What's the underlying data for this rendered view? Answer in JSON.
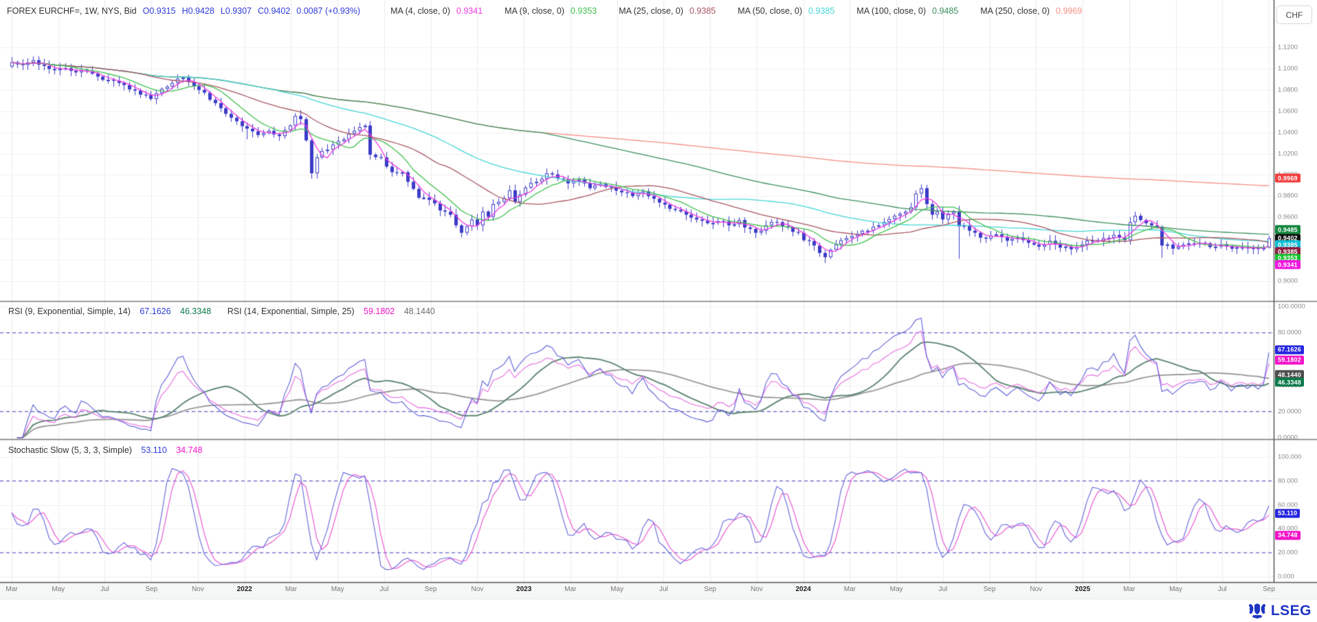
{
  "header": {
    "title": "FOREX EURCHF=, 1W, NYS, Bid",
    "open": "O0.9315",
    "high": "H0.9428",
    "low": "L0.9307",
    "close": "C0.9402",
    "change": "0.0087 (+0.93%)",
    "mas": [
      {
        "label": "MA (4, close, 0)",
        "value": "0.9341"
      },
      {
        "label": "MA (9, close, 0)",
        "value": "0.9353"
      },
      {
        "label": "MA (25, close, 0)",
        "value": "0.9385"
      },
      {
        "label": "MA (50, close, 0)",
        "value": "0.9385"
      },
      {
        "label": "MA (100, close, 0)",
        "value": "0.9485"
      },
      {
        "label": "MA (250, close, 0)",
        "value": "0.9969"
      }
    ]
  },
  "currency_button": "CHF",
  "logo": {
    "text": "LSEG"
  },
  "price_axis": {
    "ticks": [
      "1.1200",
      "1.1000",
      "1.0800",
      "1.0600",
      "1.0400",
      "1.0200",
      "1.0000",
      "0.9800",
      "0.9600",
      "0.9400",
      "0.9200",
      "0.9000"
    ],
    "badges": [
      {
        "text": "0.9969",
        "bg": "#f24040"
      },
      {
        "text": "0.9485",
        "bg": "#15873f"
      },
      {
        "text": "0.9402",
        "bg": "#111111"
      },
      {
        "text": "0.9385",
        "bg": "#10bfd4"
      },
      {
        "text": "0.9385",
        "bg": "#8e1f41"
      },
      {
        "text": "0.9353",
        "bg": "#12c12b"
      },
      {
        "text": "0.9341",
        "bg": "#ef16e0"
      }
    ]
  },
  "rsi_panel": {
    "label1": "RSI (9, Exponential, Simple, 14)",
    "value1": "67.1626",
    "value2": "46.3348",
    "label2": "RSI (14, Exponential, Simple, 25)",
    "value3": "59.1802",
    "value4": "48.1440",
    "colors": {
      "v1": "#2d3bd8",
      "v2": "#0a7a49",
      "v3": "#f213c9",
      "v4": "#6e6e6e"
    },
    "ticks": [
      "100.0000",
      "80.0000",
      "60.0000",
      "40.0000",
      "20.0000",
      "0.0000"
    ],
    "badges": [
      {
        "text": "67.1626",
        "bg": "#2626e0"
      },
      {
        "text": "59.1802",
        "bg": "#f213c9"
      },
      {
        "text": "48.1440",
        "bg": "#4d4d4d"
      },
      {
        "text": "46.3348",
        "bg": "#0a7a49"
      }
    ]
  },
  "stoch_panel": {
    "label": "Stochastic Slow (5, 3, 3, Simple)",
    "value1": "53.110",
    "value2": "34.748",
    "colors": {
      "v1": "#2d3bd8",
      "v2": "#f213c9"
    },
    "ticks": [
      "100.000",
      "80.000",
      "60.000",
      "40.000",
      "20.000",
      "0.000"
    ],
    "badges": [
      {
        "text": "53.110",
        "bg": "#2626e0"
      },
      {
        "text": "34.748",
        "bg": "#f213c9"
      }
    ]
  },
  "time_axis": {
    "labels": [
      "Mar",
      "May",
      "Jul",
      "Sep",
      "Nov",
      "2022",
      "Mar",
      "May",
      "Jul",
      "Sep",
      "Nov",
      "2023",
      "Mar",
      "May",
      "Jul",
      "Sep",
      "Nov",
      "2024",
      "Mar",
      "May",
      "Jul",
      "Sep",
      "Nov",
      "2025",
      "Mar",
      "May",
      "Jul",
      "Sep"
    ],
    "year_labels": [
      "2022",
      "2023",
      "2024",
      "2025"
    ]
  },
  "chart_data": {
    "type": "candlestick",
    "symbol": "EURCHF=",
    "interval": "1W",
    "x_start": "Mar 2021",
    "x_end": "Sep 2025",
    "weeks": 236,
    "price_range": [
      0.9,
      1.12
    ],
    "grid_step": 0.02,
    "candle_color": "#3b3bc8",
    "last_candle": {
      "open": 0.9315,
      "high": 0.9428,
      "low": 0.9307,
      "close": 0.9402
    },
    "close_anchors": [
      [
        0,
        1.106
      ],
      [
        2,
        1.1035
      ],
      [
        4,
        1.108
      ],
      [
        6,
        1.1025
      ],
      [
        8,
        1.0985
      ],
      [
        10,
        1.1005
      ],
      [
        12,
        1.0965
      ],
      [
        14,
        1.0975
      ],
      [
        16,
        1.0925
      ],
      [
        18,
        1.0895
      ],
      [
        20,
        1.0865
      ],
      [
        22,
        1.0805
      ],
      [
        24,
        1.0755
      ],
      [
        26,
        1.0715
      ],
      [
        28,
        1.081
      ],
      [
        30,
        1.0865
      ],
      [
        32,
        1.0915
      ],
      [
        33,
        1.0875
      ],
      [
        34,
        1.0835
      ],
      [
        36,
        1.0775
      ],
      [
        38,
        1.0675
      ],
      [
        40,
        1.0575
      ],
      [
        42,
        1.0505
      ],
      [
        44,
        1.0435
      ],
      [
        46,
        1.0375
      ],
      [
        48,
        1.0415
      ],
      [
        50,
        1.0365
      ],
      [
        52,
        1.0465
      ],
      [
        53,
        1.0555
      ],
      [
        54,
        1.0525
      ],
      [
        55,
        1.0325
      ],
      [
        56,
        1.0015
      ],
      [
        57,
        1.0165
      ],
      [
        58,
        1.0225
      ],
      [
        60,
        1.0285
      ],
      [
        62,
        1.0335
      ],
      [
        64,
        1.0415
      ],
      [
        66,
        1.0465
      ],
      [
        67,
        1.019
      ],
      [
        69,
        1.0165
      ],
      [
        71,
        1.0025
      ],
      [
        73,
        1.0025
      ],
      [
        74,
        0.9935
      ],
      [
        76,
        0.9785
      ],
      [
        78,
        0.9765
      ],
      [
        80,
        0.9665
      ],
      [
        82,
        0.9625
      ],
      [
        83,
        0.9525
      ],
      [
        84,
        0.9455
      ],
      [
        85,
        0.9515
      ],
      [
        86,
        0.958
      ],
      [
        87,
        0.9525
      ],
      [
        88,
        0.9655
      ],
      [
        89,
        0.9605
      ],
      [
        90,
        0.9725
      ],
      [
        92,
        0.978
      ],
      [
        93,
        0.9855
      ],
      [
        94,
        0.9745
      ],
      [
        95,
        0.9815
      ],
      [
        96,
        0.988
      ],
      [
        98,
        0.9935
      ],
      [
        100,
        1.0015
      ],
      [
        102,
        0.9965
      ],
      [
        104,
        0.992
      ],
      [
        106,
        0.9955
      ],
      [
        108,
        0.9875
      ],
      [
        110,
        0.9915
      ],
      [
        112,
        0.9885
      ],
      [
        114,
        0.9835
      ],
      [
        116,
        0.98
      ],
      [
        118,
        0.9845
      ],
      [
        120,
        0.9775
      ],
      [
        122,
        0.972
      ],
      [
        124,
        0.967
      ],
      [
        126,
        0.9625
      ],
      [
        128,
        0.958
      ],
      [
        130,
        0.9545
      ],
      [
        132,
        0.9565
      ],
      [
        134,
        0.9525
      ],
      [
        136,
        0.9575
      ],
      [
        137,
        0.9505
      ],
      [
        139,
        0.9455
      ],
      [
        141,
        0.9525
      ],
      [
        143,
        0.9555
      ],
      [
        145,
        0.9505
      ],
      [
        147,
        0.9455
      ],
      [
        148,
        0.9385
      ],
      [
        150,
        0.9335
      ],
      [
        151,
        0.9265
      ],
      [
        152,
        0.9225
      ],
      [
        153,
        0.9295
      ],
      [
        154,
        0.9345
      ],
      [
        156,
        0.9405
      ],
      [
        158,
        0.9445
      ],
      [
        160,
        0.9475
      ],
      [
        162,
        0.9525
      ],
      [
        164,
        0.9585
      ],
      [
        166,
        0.9635
      ],
      [
        168,
        0.9695
      ],
      [
        169,
        0.9825
      ],
      [
        170,
        0.9875
      ],
      [
        171,
        0.9725
      ],
      [
        172,
        0.9625
      ],
      [
        173,
        0.9655
      ],
      [
        174,
        0.958
      ],
      [
        175,
        0.9635
      ],
      [
        176,
        0.9655
      ],
      [
        177,
        0.9515
      ],
      [
        178,
        0.9525
      ],
      [
        179,
        0.9475
      ],
      [
        180,
        0.9455
      ],
      [
        182,
        0.94
      ],
      [
        184,
        0.944
      ],
      [
        186,
        0.938
      ],
      [
        188,
        0.941
      ],
      [
        190,
        0.936
      ],
      [
        192,
        0.9325
      ],
      [
        194,
        0.938
      ],
      [
        196,
        0.9315
      ],
      [
        198,
        0.93
      ],
      [
        200,
        0.9345
      ],
      [
        202,
        0.9385
      ],
      [
        204,
        0.9405
      ],
      [
        206,
        0.9435
      ],
      [
        208,
        0.9385
      ],
      [
        209,
        0.9555
      ],
      [
        210,
        0.9615
      ],
      [
        211,
        0.9575
      ],
      [
        212,
        0.9545
      ],
      [
        213,
        0.9525
      ],
      [
        214,
        0.951
      ],
      [
        215,
        0.9335
      ],
      [
        216,
        0.9345
      ],
      [
        217,
        0.9305
      ],
      [
        218,
        0.9325
      ],
      [
        220,
        0.9355
      ],
      [
        222,
        0.936
      ],
      [
        224,
        0.932
      ],
      [
        226,
        0.9345
      ],
      [
        228,
        0.9305
      ],
      [
        230,
        0.932
      ],
      [
        232,
        0.9315
      ],
      [
        234,
        0.9312
      ],
      [
        235,
        0.9402
      ]
    ],
    "wick_lows": {
      "44": 1.0335,
      "56": 0.9965,
      "84": 0.941,
      "152": 0.917,
      "177": 0.921,
      "198": 0.9245,
      "215": 0.9218
    },
    "wick_highs": {
      "4": 1.1115,
      "66": 1.048,
      "100": 1.006,
      "170": 0.991,
      "210": 0.9655
    },
    "moving_averages": [
      {
        "period": 4,
        "color": "#f03ae0",
        "last": 0.9341
      },
      {
        "period": 9,
        "color": "#3fc14b",
        "last": 0.9353
      },
      {
        "period": 25,
        "color": "#a85561",
        "last": 0.9385
      },
      {
        "period": 50,
        "color": "#45d6d6",
        "last": 0.9385
      },
      {
        "period": 100,
        "color": "#3a8f5d",
        "last": 0.9485
      },
      {
        "period": 250,
        "color": "#f58f84",
        "last": 0.9969
      }
    ],
    "indicators": [
      {
        "name": "RSI",
        "params": [
          9,
          "Exponential",
          "Simple",
          14
        ],
        "line_color": "#5d5dd8",
        "smooth_color": "#5d8671",
        "last": 67.1626,
        "smooth_last": 46.3348,
        "range": [
          0,
          100
        ],
        "bands": [
          20,
          80
        ]
      },
      {
        "name": "RSI",
        "params": [
          14,
          "Exponential",
          "Simple",
          25
        ],
        "line_color": "#e66ae0",
        "smooth_color": "#9b9b9b",
        "last": 59.1802,
        "smooth_last": 48.144,
        "range": [
          0,
          100
        ],
        "bands": [
          20,
          80
        ]
      },
      {
        "name": "Stochastic Slow",
        "params": [
          5,
          3,
          3,
          "Simple"
        ],
        "k_color": "#6e6ede",
        "d_color": "#ea5ad2",
        "k_last": 53.11,
        "d_last": 34.748,
        "range": [
          0,
          100
        ],
        "bands": [
          20,
          80
        ]
      }
    ],
    "band_line_color": "#3d3dc2"
  }
}
